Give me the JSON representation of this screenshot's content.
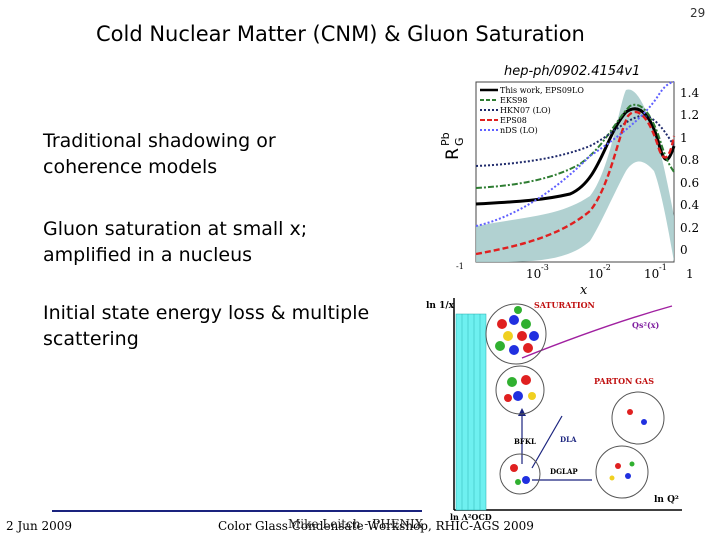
{
  "slide": {
    "title": "Cold Nuclear Matter (CNM) & Gluon Saturation",
    "page_number": "29",
    "reference": "hep-ph/0902.4154v1",
    "bullets": [
      "Traditional shadowing or coherence models",
      "Gluon saturation at small x; amplified in a nucleus",
      "Initial state energy loss & multiple scattering"
    ],
    "footer": {
      "date": "2 Jun 2009",
      "text": "Color Glass Condensate Workshop, RHIC-AGS 2009",
      "overlay": "Mike Leitch - PHENIX"
    }
  },
  "plot": {
    "ylabel_main": "R",
    "ylabel_sub": "G",
    "ylabel_sup": "Pb",
    "xlabel": "x",
    "y_ticks": [
      "1.4",
      "1.2",
      "1",
      "0.8",
      "0.6",
      "0.4",
      "0.2",
      "0"
    ],
    "x_ticks": [
      "-1",
      "10",
      "-3",
      "10",
      "-2",
      "10",
      "-1",
      "1"
    ],
    "legend": [
      "This work, EPS09LO",
      "EKS98",
      "HKN07 (LO)",
      "EPS08",
      "nDS (LO)"
    ],
    "colors": {
      "band": "#a9cccc",
      "eps09": "#000000",
      "eks98": "#2e7d32",
      "hkn07": "#1f2a6b",
      "eps08": "#e02020",
      "nds": "#6060ff"
    }
  },
  "diagram": {
    "y_axis_label": "ln 1/x",
    "x_axis_label": "ln Q²",
    "lambda_label": "ln Λ²QCD",
    "saturation": "SATURATION",
    "qs": "Qs²(x)",
    "parton_gas": "PARTON GAS",
    "bfkl": "BFKL",
    "dla": "DLA",
    "dglap": "DGLAP"
  }
}
